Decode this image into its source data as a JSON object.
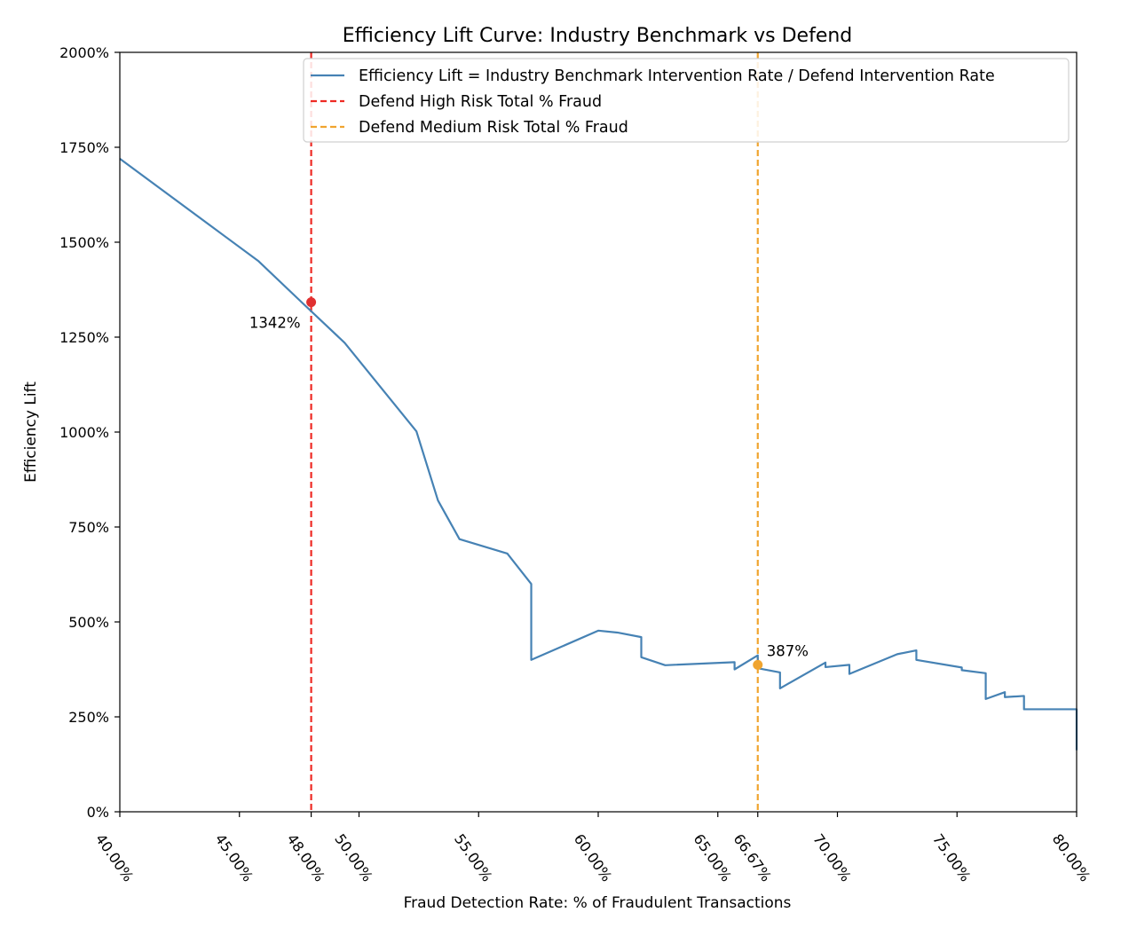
{
  "chart_data": {
    "type": "line",
    "title": "Efficiency Lift Curve: Industry Benchmark vs Defend",
    "xlabel": "Fraud Detection Rate: % of Fraudulent Transactions",
    "ylabel": "Efficiency Lift",
    "xlim": [
      40,
      80
    ],
    "ylim": [
      0,
      2000
    ],
    "grid": false,
    "legend_position": "top-right",
    "x_ticks": [
      40,
      45,
      48,
      50,
      55,
      60,
      65,
      66.67,
      70,
      75,
      80
    ],
    "x_tick_labels": [
      "40.00%",
      "45.00%",
      "48.00%",
      "50.00%",
      "55.00%",
      "60.00%",
      "65.00%",
      "66.67%",
      "70.00%",
      "75.00%",
      "80.00%"
    ],
    "y_ticks": [
      0,
      250,
      500,
      750,
      1000,
      1250,
      1500,
      1750,
      2000
    ],
    "y_tick_labels": [
      "0%",
      "250%",
      "500%",
      "750%",
      "1000%",
      "1250%",
      "1500%",
      "1750%",
      "2000%"
    ],
    "series": [
      {
        "name": "Efficiency Lift = Industry Benchmark Intervention Rate / Defend Intervention Rate",
        "color": "#4682b4",
        "style": "solid",
        "x": [
          40.0,
          45.8,
          47.6,
          49.4,
          52.4,
          53.3,
          54.2,
          56.2,
          57.2,
          57.2,
          60.0,
          60.8,
          61.8,
          61.8,
          62.8,
          65.7,
          65.7,
          66.67,
          66.67,
          67.6,
          67.6,
          69.5,
          69.5,
          70.5,
          70.5,
          72.5,
          73.3,
          73.3,
          75.2,
          75.2,
          76.2,
          76.2,
          77.0,
          77.0,
          77.8,
          77.8,
          80.0,
          80.0
        ],
        "y": [
          1720,
          1450,
          1342,
          1235,
          1002,
          820,
          718,
          680,
          600,
          400,
          477,
          472,
          460,
          407,
          386,
          394,
          375,
          412,
          378,
          367,
          325,
          393,
          381,
          387,
          363,
          415,
          425,
          400,
          380,
          373,
          365,
          297,
          315,
          302,
          305,
          270,
          270,
          162
        ]
      }
    ],
    "reference_lines": [
      {
        "name": "Defend High Risk Total % Fraud",
        "x": 48.0,
        "color": "#ee2a24",
        "style": "dashed"
      },
      {
        "name": "Defend Medium Risk Total % Fraud",
        "x": 66.67,
        "color": "#f0a42f",
        "style": "dashed"
      }
    ],
    "markers": [
      {
        "x": 48.0,
        "y": 1342,
        "label": "1342%",
        "color": "#e03030",
        "label_side": "below-left"
      },
      {
        "x": 66.67,
        "y": 387,
        "label": "387%",
        "color": "#f0a42f",
        "label_side": "above-right"
      }
    ]
  }
}
